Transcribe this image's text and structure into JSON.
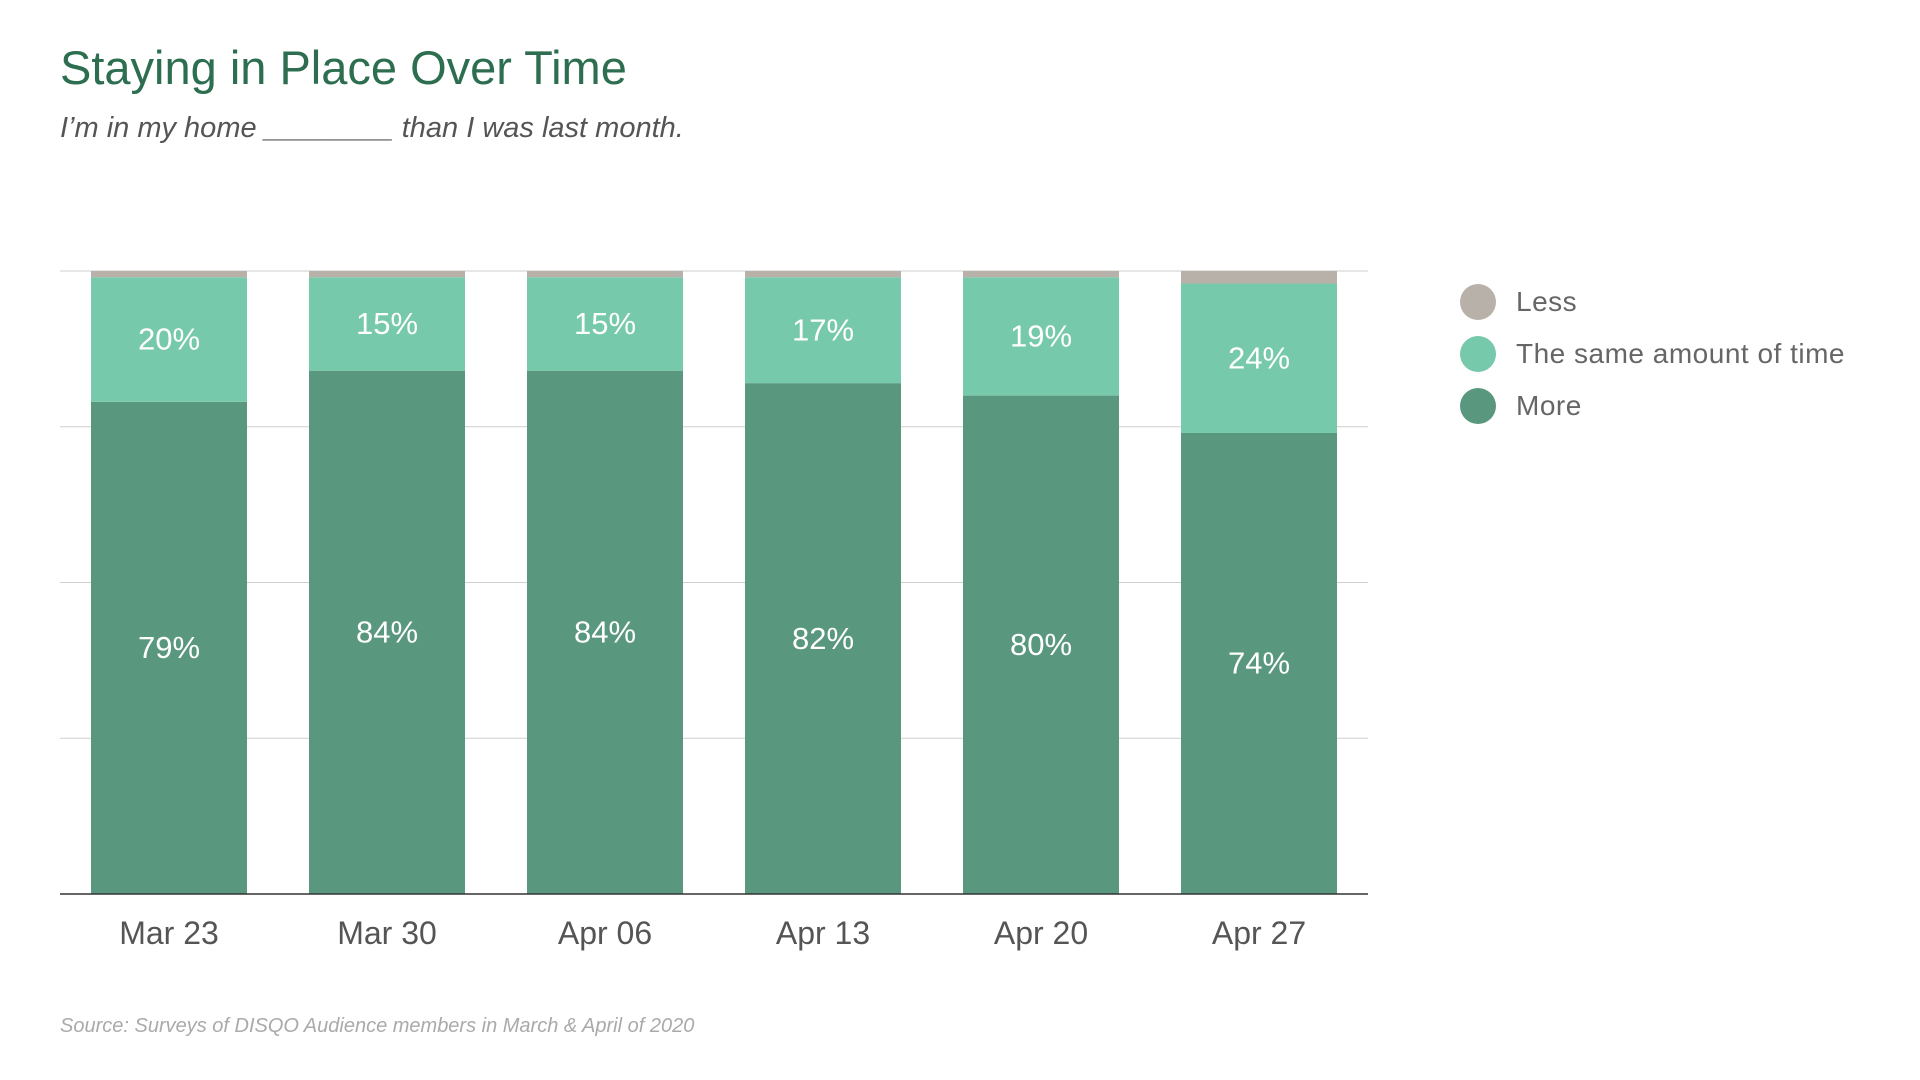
{
  "title": "Staying in Place Over Time",
  "subtitle": "I’m in my home ________ than I was last month.",
  "source": "Source: Surveys of DISQO Audience members in March & April of 2020",
  "colors": {
    "less": "#b7b1a9",
    "same": "#77c9ab",
    "more": "#5a977f",
    "title": "#2c6e4f"
  },
  "legend": [
    {
      "label": "Less",
      "color": "#b7b1a9"
    },
    {
      "label": "The same amount of time",
      "color": "#77c9ab"
    },
    {
      "label": "More",
      "color": "#5a977f"
    }
  ],
  "chart_data": {
    "type": "bar",
    "stacked": true,
    "categories": [
      "Mar 23",
      "Mar 30",
      "Apr 06",
      "Apr 13",
      "Apr 20",
      "Apr 27"
    ],
    "series": [
      {
        "name": "More",
        "values": [
          79,
          84,
          84,
          82,
          80,
          74
        ],
        "labels": [
          "79%",
          "84%",
          "84%",
          "82%",
          "80%",
          "74%"
        ]
      },
      {
        "name": "The same amount of time",
        "values": [
          20,
          15,
          15,
          17,
          19,
          24
        ],
        "labels": [
          "20%",
          "15%",
          "15%",
          "17%",
          "19%",
          "24%"
        ]
      },
      {
        "name": "Less",
        "values": [
          1.5,
          1,
          1,
          1.5,
          1.5,
          2
        ]
      }
    ],
    "ylim": [
      0,
      100
    ],
    "grid": true,
    "legend_position": "right"
  }
}
